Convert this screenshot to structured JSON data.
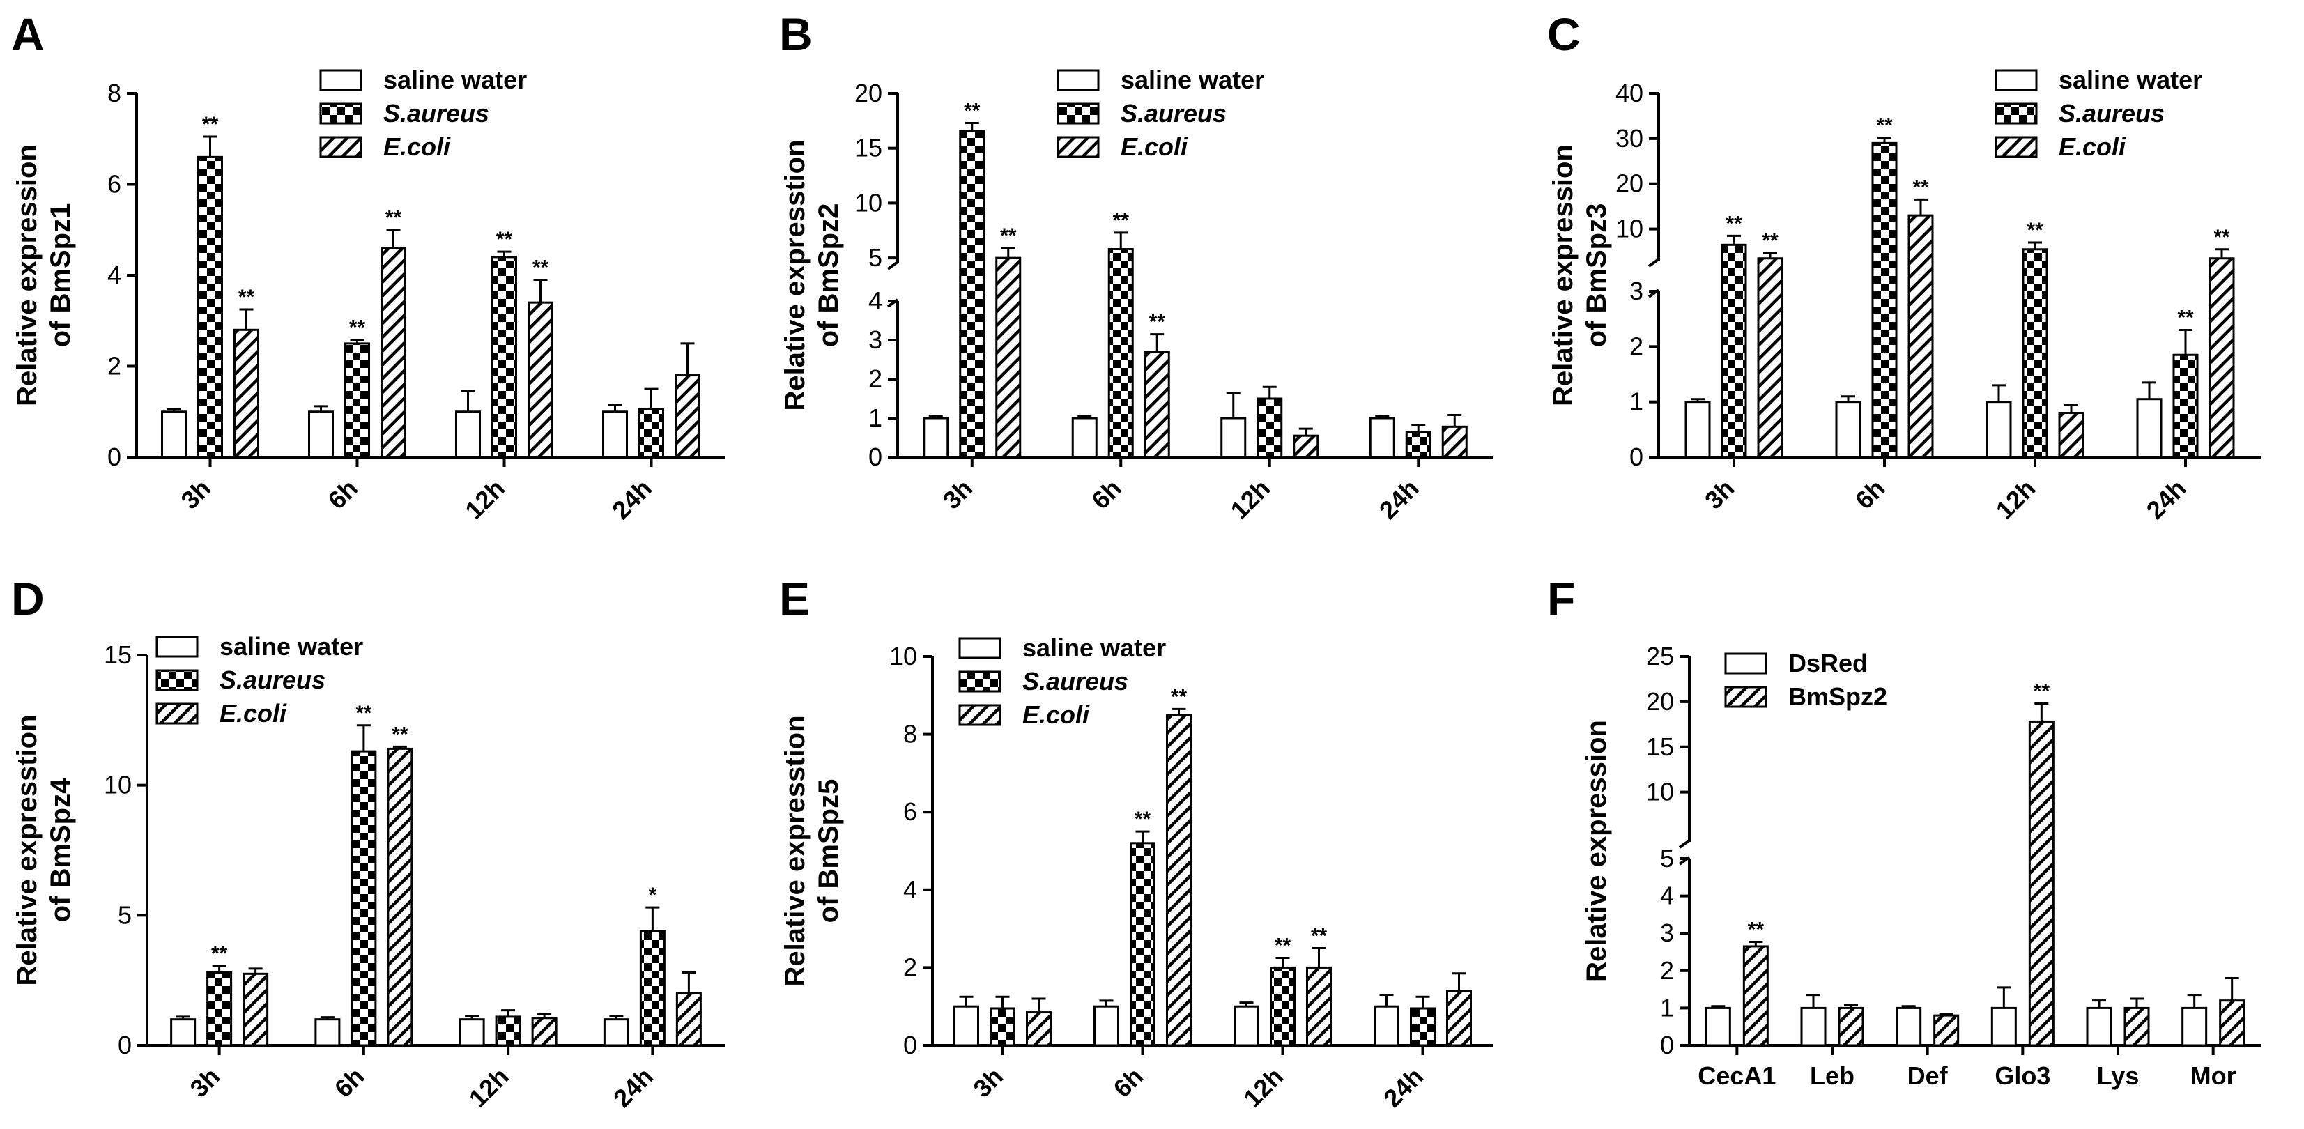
{
  "chart_data": [
    {
      "panel": "A",
      "type": "bar",
      "ylabel_lines": [
        "Relative expression",
        "of BmSpz1"
      ],
      "categories": [
        "3h",
        "6h",
        "12h",
        "24h"
      ],
      "series": [
        {
          "name": "saline water",
          "pattern": "white",
          "values": [
            1.0,
            1.0,
            1.0,
            1.0
          ],
          "errors": [
            0.05,
            0.12,
            0.45,
            0.15
          ]
        },
        {
          "name": "S.aureus",
          "pattern": "checker",
          "italic": true,
          "values": [
            6.6,
            2.5,
            4.4,
            1.05
          ],
          "errors": [
            0.45,
            0.08,
            0.12,
            0.45
          ]
        },
        {
          "name": "E.coli",
          "pattern": "hatch",
          "italic": true,
          "values": [
            2.8,
            4.6,
            3.4,
            1.8
          ],
          "errors": [
            0.45,
            0.4,
            0.5,
            0.7
          ]
        }
      ],
      "significance": [
        [
          "",
          "",
          "",
          ""
        ],
        [
          "**",
          "**",
          "**",
          ""
        ],
        [
          "**",
          "**",
          "**",
          ""
        ]
      ],
      "y_segments": [
        {
          "min": 0,
          "max": 8,
          "ticks": [
            0,
            2,
            4,
            6,
            8
          ]
        }
      ]
    },
    {
      "panel": "B",
      "type": "bar",
      "ylabel_lines": [
        "Relative expresstion",
        "of BmSpz2"
      ],
      "categories": [
        "3h",
        "6h",
        "12h",
        "24h"
      ],
      "series": [
        {
          "name": "saline water",
          "pattern": "white",
          "values": [
            1.0,
            1.0,
            1.0,
            1.0
          ],
          "errors": [
            0.06,
            0.05,
            0.65,
            0.06
          ]
        },
        {
          "name": "S.aureus",
          "pattern": "checker",
          "italic": true,
          "values": [
            16.6,
            5.8,
            1.5,
            0.65
          ],
          "errors": [
            0.7,
            1.5,
            0.3,
            0.18
          ]
        },
        {
          "name": "E.coli",
          "pattern": "hatch",
          "italic": true,
          "values": [
            5.0,
            2.7,
            0.55,
            0.78
          ],
          "errors": [
            0.9,
            0.45,
            0.18,
            0.3
          ]
        }
      ],
      "significance": [
        [
          "",
          "",
          "",
          ""
        ],
        [
          "**",
          "**",
          "",
          ""
        ],
        [
          "**",
          "**",
          "",
          ""
        ]
      ],
      "y_segments": [
        {
          "min": 0,
          "max": 4,
          "ticks": [
            0,
            1,
            2,
            3,
            4
          ]
        },
        {
          "min": 4.5,
          "max": 20,
          "ticks": [
            5,
            10,
            15,
            20
          ]
        }
      ]
    },
    {
      "panel": "C",
      "type": "bar",
      "ylabel_lines": [
        "Relative expression",
        "of BmSpz3"
      ],
      "categories": [
        "3h",
        "6h",
        "12h",
        "24h"
      ],
      "series": [
        {
          "name": "saline water",
          "pattern": "white",
          "values": [
            1.0,
            1.0,
            1.0,
            1.05
          ],
          "errors": [
            0.05,
            0.1,
            0.3,
            0.3
          ]
        },
        {
          "name": "S.aureus",
          "pattern": "checker",
          "italic": true,
          "values": [
            6.5,
            29.0,
            5.5,
            1.85
          ],
          "errors": [
            2.0,
            1.2,
            1.5,
            0.45
          ]
        },
        {
          "name": "E.coli",
          "pattern": "hatch",
          "italic": true,
          "values": [
            3.5,
            13.0,
            0.8,
            3.5
          ],
          "errors": [
            1.2,
            3.5,
            0.15,
            2.0
          ]
        }
      ],
      "significance": [
        [
          "",
          "",
          "",
          ""
        ],
        [
          "**",
          "**",
          "**",
          "**"
        ],
        [
          "**",
          "**",
          "",
          "**"
        ]
      ],
      "y_segments": [
        {
          "min": 0,
          "max": 3,
          "ticks": [
            0,
            1,
            2,
            3
          ]
        },
        {
          "min": 3,
          "max": 40,
          "ticks": [
            10,
            20,
            30,
            40
          ]
        }
      ]
    },
    {
      "panel": "D",
      "type": "bar",
      "ylabel_lines": [
        "Relative expresstion",
        "of BmSpz4"
      ],
      "categories": [
        "3h",
        "6h",
        "12h",
        "24h"
      ],
      "series": [
        {
          "name": "saline water",
          "pattern": "white",
          "values": [
            1.0,
            1.0,
            1.0,
            1.0
          ],
          "errors": [
            0.1,
            0.08,
            0.12,
            0.12
          ]
        },
        {
          "name": "S.aureus",
          "pattern": "checker",
          "italic": true,
          "values": [
            2.8,
            11.3,
            1.1,
            4.4
          ],
          "errors": [
            0.25,
            1.0,
            0.25,
            0.9
          ]
        },
        {
          "name": "E.coli",
          "pattern": "hatch",
          "italic": true,
          "values": [
            2.75,
            11.4,
            1.05,
            2.0
          ],
          "errors": [
            0.2,
            0.08,
            0.15,
            0.8
          ]
        }
      ],
      "significance": [
        [
          "",
          "",
          "",
          ""
        ],
        [
          "**",
          "**",
          "",
          "*"
        ],
        [
          "",
          "**",
          "",
          ""
        ]
      ],
      "y_segments": [
        {
          "min": 0,
          "max": 15,
          "ticks": [
            0,
            5,
            10,
            15
          ]
        }
      ]
    },
    {
      "panel": "E",
      "type": "bar",
      "ylabel_lines": [
        "Relative expresstion",
        "of BmSpz5"
      ],
      "categories": [
        "3h",
        "6h",
        "12h",
        "24h"
      ],
      "series": [
        {
          "name": "saline water",
          "pattern": "white",
          "values": [
            1.0,
            1.0,
            1.0,
            1.0
          ],
          "errors": [
            0.25,
            0.15,
            0.1,
            0.3
          ]
        },
        {
          "name": "S.aureus",
          "pattern": "checker",
          "italic": true,
          "values": [
            0.95,
            5.2,
            2.0,
            0.95
          ],
          "errors": [
            0.3,
            0.3,
            0.25,
            0.3
          ]
        },
        {
          "name": "E.coli",
          "pattern": "hatch",
          "italic": true,
          "values": [
            0.85,
            8.5,
            2.0,
            1.4
          ],
          "errors": [
            0.35,
            0.15,
            0.5,
            0.45
          ]
        }
      ],
      "significance": [
        [
          "",
          "",
          "",
          ""
        ],
        [
          "",
          "**",
          "**",
          ""
        ],
        [
          "",
          "**",
          "**",
          ""
        ]
      ],
      "y_segments": [
        {
          "min": 0,
          "max": 10,
          "ticks": [
            0,
            2,
            4,
            6,
            8,
            10
          ]
        }
      ]
    },
    {
      "panel": "F",
      "type": "bar",
      "ylabel_lines": [
        "Relative expression"
      ],
      "categories": [
        "CecA1",
        "Leb",
        "Def",
        "Glo3",
        "Lys",
        "Mor"
      ],
      "series": [
        {
          "name": "DsRed",
          "pattern": "white",
          "values": [
            1.0,
            1.0,
            1.0,
            1.0,
            1.0,
            1.0
          ],
          "errors": [
            0.05,
            0.35,
            0.05,
            0.55,
            0.2,
            0.35
          ]
        },
        {
          "name": "BmSpz2",
          "pattern": "hatch",
          "values": [
            2.65,
            1.0,
            0.8,
            17.8,
            1.0,
            1.2
          ],
          "errors": [
            0.12,
            0.08,
            0.05,
            2.0,
            0.25,
            0.6
          ]
        }
      ],
      "significance": [
        [
          "",
          "",
          "",
          "",
          "",
          ""
        ],
        [
          "**",
          "",
          "",
          "**",
          "",
          ""
        ]
      ],
      "y_segments": [
        {
          "min": 0,
          "max": 5,
          "ticks": [
            0,
            1,
            2,
            3,
            4,
            5
          ]
        },
        {
          "min": 4.5,
          "max": 25,
          "ticks": [
            5,
            10,
            15,
            20,
            25
          ]
        }
      ]
    }
  ]
}
